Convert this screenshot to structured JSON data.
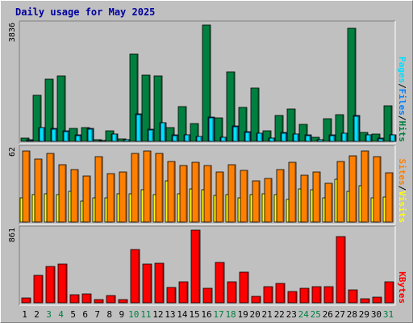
{
  "chart_data": {
    "title": "Daily usage for May 2025",
    "type": "bar",
    "categories": [
      "1",
      "2",
      "3",
      "4",
      "5",
      "6",
      "7",
      "8",
      "9",
      "10",
      "11",
      "12",
      "13",
      "14",
      "15",
      "16",
      "17",
      "18",
      "19",
      "20",
      "21",
      "22",
      "23",
      "24",
      "25",
      "26",
      "27",
      "28",
      "29",
      "30",
      "31"
    ],
    "weekend_days": [
      "3",
      "4",
      "10",
      "11",
      "17",
      "18",
      "24",
      "25",
      "31"
    ],
    "panels": [
      {
        "max_label": "3836",
        "max_value": 3836,
        "series": [
          {
            "name": "Hits",
            "color": "#008040",
            "values": [
              105,
              1520,
              2060,
              2160,
              425,
              450,
              60,
              350,
              90,
              2880,
              2190,
              2170,
              440,
              1145,
              575,
              3836,
              770,
              2280,
              1120,
              1750,
              340,
              845,
              1070,
              565,
              140,
              745,
              880,
              3720,
              290,
              250,
              1160
            ]
          },
          {
            "name": "Files",
            "color": "#0080ff",
            "values": [
              40,
              460,
              420,
              350,
              200,
              430,
              35,
              240,
              60,
              900,
              400,
              620,
              200,
              210,
              160,
              800,
              130,
              500,
              310,
              270,
              105,
              280,
              250,
              200,
              50,
              200,
              270,
              840,
              220,
              100,
              220
            ]
          },
          {
            "name": "Pages",
            "color": "#00e0ff",
            "values": [
              30,
              440,
              400,
              330,
              190,
              400,
              25,
              230,
              50,
              880,
              380,
              600,
              190,
              200,
              150,
              780,
              120,
              480,
              300,
              260,
              100,
              270,
              240,
              190,
              40,
              190,
              260,
              820,
              210,
              90,
              210
            ]
          }
        ],
        "axis_labels": [
          "Pages",
          "/",
          "Files",
          "/",
          "Hits"
        ],
        "axis_label_colors": [
          "#00e0ff",
          "#000000",
          "#0080ff",
          "#000000",
          "#008040"
        ]
      },
      {
        "max_label": "62",
        "max_value": 62,
        "series": [
          {
            "name": "Visits",
            "color": "#ffff00",
            "values": [
              21,
              24,
              25,
              24,
              27,
              18,
              21,
              21,
              25,
              25,
              28,
              24,
              36,
              25,
              29,
              28,
              23,
              24,
              21,
              24,
              25,
              24,
              20,
              29,
              28,
              21,
              37,
              27,
              32,
              21,
              22
            ]
          },
          {
            "name": "Sites",
            "color": "#ff8000",
            "values": [
              62,
              55,
              60,
              50,
              46,
              40,
              57,
              42,
              44,
              60,
              62,
              60,
              53,
              49,
              52,
              49,
              44,
              50,
              45,
              36,
              38,
              46,
              52,
              41,
              44,
              34,
              53,
              58,
              62,
              57,
              43
            ]
          }
        ],
        "axis_labels": [
          "Sites",
          "/",
          "Visits"
        ],
        "axis_label_colors": [
          "#ff8000",
          "#000000",
          "#ffff00"
        ]
      },
      {
        "max_label": "861",
        "max_value": 861,
        "series": [
          {
            "name": "KBytes",
            "color": "#ff0000",
            "values": [
              60,
              325,
              435,
              460,
              95,
              105,
              35,
              85,
              40,
              630,
              460,
              465,
              180,
              245,
              861,
              175,
              475,
              250,
              365,
              80,
              195,
              225,
              135,
              175,
              190,
              195,
              780,
              150,
              50,
              65,
              250
            ]
          }
        ],
        "axis_labels": [
          "KBytes"
        ],
        "axis_label_colors": [
          "#ff0000"
        ]
      }
    ]
  }
}
